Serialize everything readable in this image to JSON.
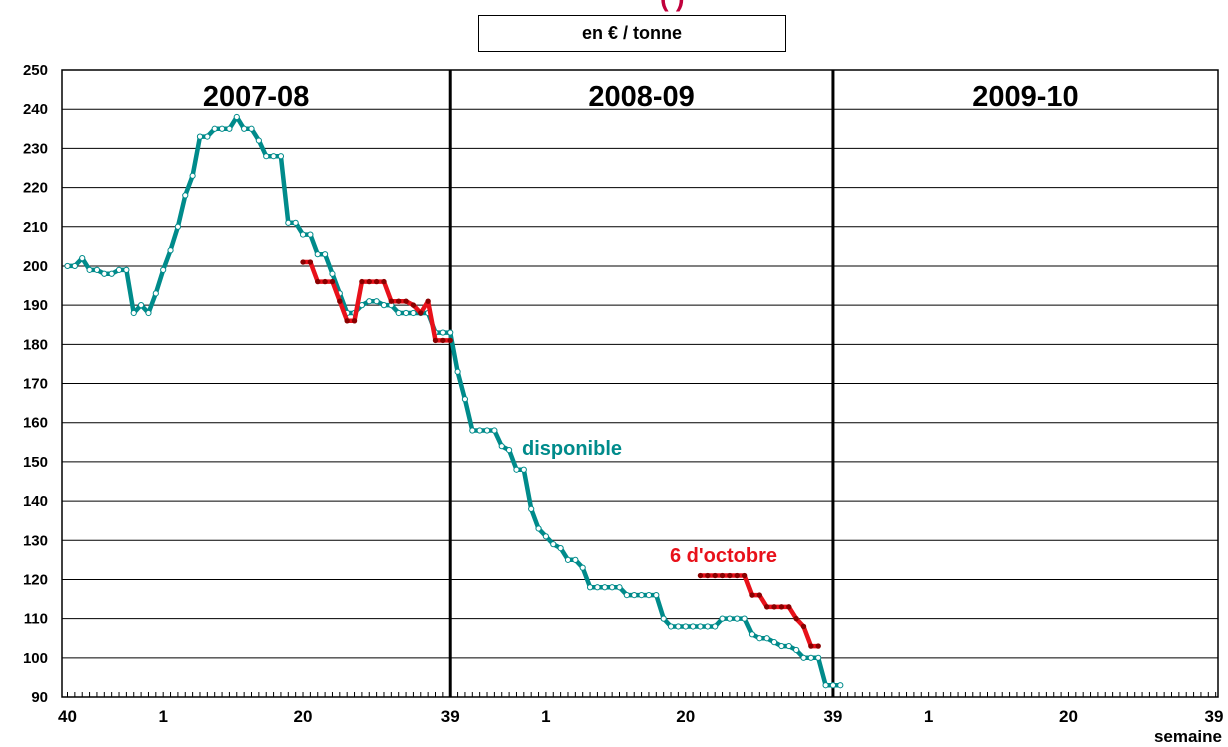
{
  "title_fragment": "(            )",
  "unit_label": "en € / tonne",
  "chart_data": {
    "type": "line",
    "ylim": [
      90,
      250
    ],
    "y_ticks": [
      90,
      100,
      110,
      120,
      130,
      140,
      150,
      160,
      170,
      180,
      190,
      200,
      210,
      220,
      230,
      240,
      250
    ],
    "x_tick_labels": [
      "40",
      "1",
      "20",
      "39",
      "1",
      "20",
      "39",
      "1",
      "20",
      "39"
    ],
    "xlabel": "semaine",
    "grid": true,
    "seasons": [
      "2007-08",
      "2008-09",
      "2009-10"
    ],
    "annotations": [
      "disponible",
      "6 d'octobre"
    ],
    "colors": {
      "disponible": "#008B8B",
      "octobre": "#E8111A",
      "marker_face": "#ffffff",
      "octobre_marker": "#8B0000"
    },
    "series": [
      {
        "name": "disponible",
        "x_unit": "semaine (0 = semaine 40 de 2007)",
        "points": [
          [
            0,
            200
          ],
          [
            1,
            200
          ],
          [
            2,
            202
          ],
          [
            3,
            199
          ],
          [
            4,
            199
          ],
          [
            5,
            198
          ],
          [
            6,
            198
          ],
          [
            7,
            199
          ],
          [
            8,
            199
          ],
          [
            9,
            188
          ],
          [
            10,
            190
          ],
          [
            11,
            188
          ],
          [
            12,
            193
          ],
          [
            13,
            199
          ],
          [
            14,
            204
          ],
          [
            15,
            210
          ],
          [
            16,
            218
          ],
          [
            17,
            223
          ],
          [
            18,
            233
          ],
          [
            19,
            233
          ],
          [
            20,
            235
          ],
          [
            21,
            235
          ],
          [
            22,
            235
          ],
          [
            23,
            238
          ],
          [
            24,
            235
          ],
          [
            25,
            235
          ],
          [
            26,
            232
          ],
          [
            27,
            228
          ],
          [
            28,
            228
          ],
          [
            29,
            228
          ],
          [
            30,
            211
          ],
          [
            31,
            211
          ],
          [
            32,
            208
          ],
          [
            33,
            208
          ],
          [
            34,
            203
          ],
          [
            35,
            203
          ],
          [
            36,
            198
          ],
          [
            37,
            193
          ],
          [
            38,
            188
          ],
          [
            39,
            188
          ],
          [
            40,
            190
          ],
          [
            41,
            191
          ],
          [
            42,
            191
          ],
          [
            43,
            190
          ],
          [
            44,
            190
          ],
          [
            45,
            188
          ],
          [
            46,
            188
          ],
          [
            47,
            188
          ],
          [
            48,
            188
          ],
          [
            49,
            188
          ],
          [
            50,
            183
          ],
          [
            51,
            183
          ],
          [
            52,
            183
          ],
          [
            53,
            173
          ],
          [
            54,
            166
          ],
          [
            55,
            158
          ],
          [
            56,
            158
          ],
          [
            57,
            158
          ],
          [
            58,
            158
          ],
          [
            59,
            154
          ],
          [
            60,
            153
          ],
          [
            61,
            148
          ],
          [
            62,
            148
          ],
          [
            63,
            138
          ],
          [
            64,
            133
          ],
          [
            65,
            131
          ],
          [
            66,
            129
          ],
          [
            67,
            128
          ],
          [
            68,
            125
          ],
          [
            69,
            125
          ],
          [
            70,
            123
          ],
          [
            71,
            118
          ],
          [
            72,
            118
          ],
          [
            73,
            118
          ],
          [
            74,
            118
          ],
          [
            75,
            118
          ],
          [
            76,
            116
          ],
          [
            77,
            116
          ],
          [
            78,
            116
          ],
          [
            79,
            116
          ],
          [
            80,
            116
          ],
          [
            81,
            110
          ],
          [
            82,
            108
          ],
          [
            83,
            108
          ],
          [
            84,
            108
          ],
          [
            85,
            108
          ],
          [
            86,
            108
          ],
          [
            87,
            108
          ],
          [
            88,
            108
          ],
          [
            89,
            110
          ],
          [
            90,
            110
          ],
          [
            91,
            110
          ],
          [
            92,
            110
          ],
          [
            93,
            106
          ],
          [
            94,
            105
          ],
          [
            95,
            105
          ],
          [
            96,
            104
          ],
          [
            97,
            103
          ],
          [
            98,
            103
          ],
          [
            99,
            102
          ],
          [
            100,
            100
          ],
          [
            101,
            100
          ],
          [
            102,
            100
          ],
          [
            103,
            93
          ],
          [
            104,
            93
          ],
          [
            105,
            93
          ]
        ]
      },
      {
        "name": "6 d'octobre",
        "x_unit": "semaine (0 = semaine 40 de 2007)",
        "points": [
          [
            32,
            201
          ],
          [
            33,
            201
          ],
          [
            34,
            196
          ],
          [
            35,
            196
          ],
          [
            36,
            196
          ],
          [
            37,
            191
          ],
          [
            38,
            186
          ],
          [
            39,
            186
          ],
          [
            40,
            196
          ],
          [
            41,
            196
          ],
          [
            42,
            196
          ],
          [
            43,
            196
          ],
          [
            44,
            191
          ],
          [
            45,
            191
          ],
          [
            46,
            191
          ],
          [
            47,
            190
          ],
          [
            48,
            188
          ],
          [
            49,
            191
          ],
          [
            50,
            181
          ],
          [
            51,
            181
          ],
          [
            52,
            181
          ],
          [
            86,
            121
          ],
          [
            87,
            121
          ],
          [
            88,
            121
          ],
          [
            89,
            121
          ],
          [
            90,
            121
          ],
          [
            91,
            121
          ],
          [
            92,
            121
          ],
          [
            93,
            116
          ],
          [
            94,
            116
          ],
          [
            95,
            113
          ],
          [
            96,
            113
          ],
          [
            97,
            113
          ],
          [
            98,
            113
          ],
          [
            99,
            110
          ],
          [
            100,
            108
          ],
          [
            101,
            103
          ],
          [
            102,
            103
          ]
        ]
      }
    ]
  }
}
